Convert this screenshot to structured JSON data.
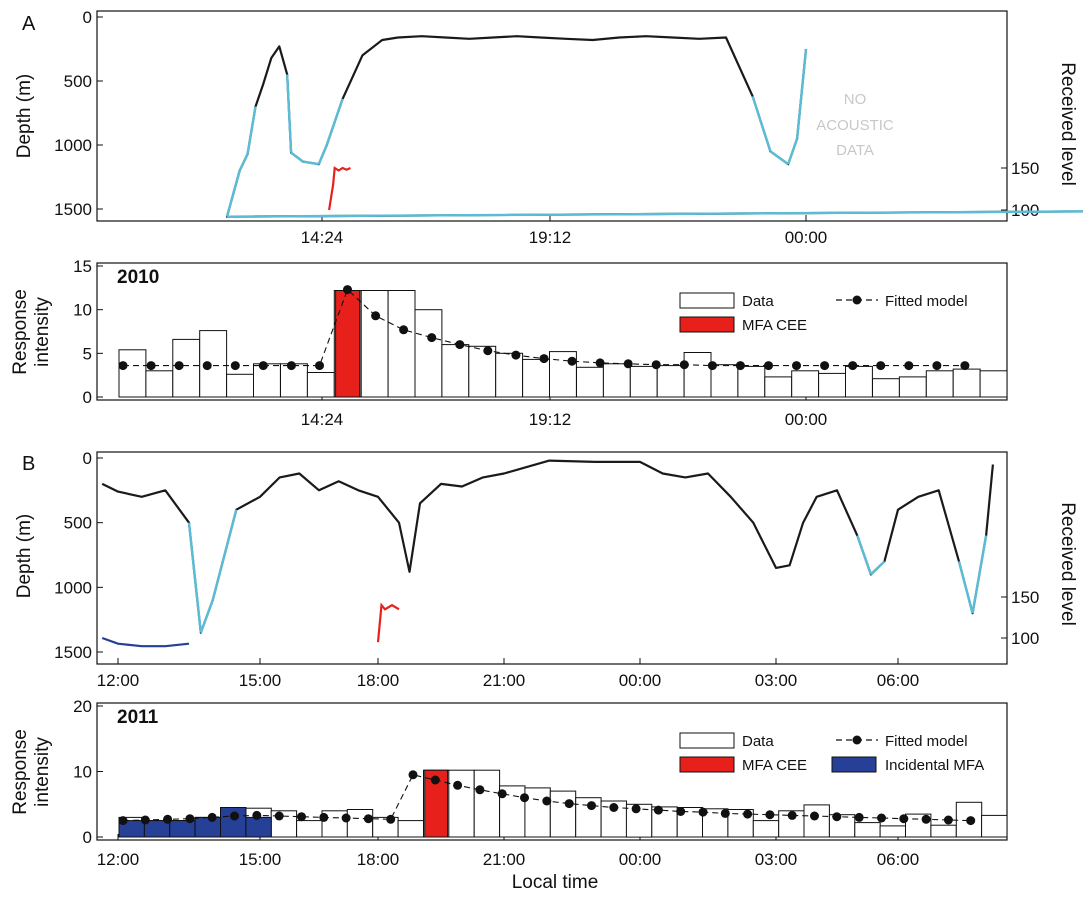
{
  "figure": {
    "panel_a": {
      "label": "A",
      "year": "2010",
      "no_acoustic_text": [
        "NO",
        "ACOUSTIC",
        "DATA"
      ]
    },
    "panel_b": {
      "label": "B",
      "year": "2011"
    },
    "depth_ylabel": "Depth (m)",
    "received_level_label": "Received level",
    "response_ylabel": [
      "Response",
      "intensity"
    ],
    "xlabel": "Local time",
    "legend": {
      "data": "Data",
      "mfa_cee": "MFA CEE",
      "fitted": "Fitted model",
      "incidental": "Incidental MFA"
    },
    "colors": {
      "dive": "#1a1a1a",
      "foraging": "#5bbcd6",
      "cee": "#e8201c",
      "incidental": "#263f97",
      "no_data": "#c8c8c8",
      "bar": "#ffffff"
    }
  },
  "chart_data": [
    {
      "type": "line",
      "panel": "A",
      "title": "",
      "xlabel": "",
      "ylabel": "Depth (m)",
      "y2label": "Received level",
      "x_ticks": [
        "14:24",
        "19:12",
        "00:00"
      ],
      "y_ticks": [
        0,
        500,
        1000,
        1500
      ],
      "y2_ticks": [
        100,
        150
      ],
      "ylim": [
        0,
        1500
      ],
      "series": [
        {
          "name": "Dive profile",
          "x": [
            "10:48",
            "11:00",
            "11:30",
            "12:00",
            "12:20",
            "12:24",
            "12:40",
            "12:50",
            "13:00",
            "13:10",
            "13:20",
            "13:30",
            "13:40",
            "13:45",
            "14:00",
            "14:20",
            "14:30",
            "14:50",
            "15:15",
            "15:40",
            "16:00",
            "16:30",
            "17:00",
            "17:30",
            "18:00",
            "18:30",
            "19:00",
            "19:30",
            "20:00",
            "20:30",
            "21:00",
            "21:30",
            "22:00",
            "22:30",
            "23:00",
            "23:20",
            "23:40",
            "23:50",
            "00:00"
          ],
          "depth": [
            480,
            380,
            160,
            480,
            1500,
            1560,
            1200,
            1070,
            700,
            520,
            320,
            230,
            450,
            1060,
            1130,
            1150,
            1000,
            640,
            300,
            180,
            160,
            150,
            160,
            170,
            160,
            150,
            160,
            170,
            180,
            160,
            150,
            160,
            170,
            160,
            620,
            1050,
            1150,
            950,
            250
          ]
        },
        {
          "name": "Received level (MFA CEE)",
          "x": [
            "14:33",
            "14:38",
            "14:40",
            "14:45",
            "14:50",
            "14:55",
            "15:00"
          ],
          "received_level": [
            100,
            130,
            150,
            147,
            150,
            148,
            150
          ]
        }
      ]
    },
    {
      "type": "bar",
      "panel": "A",
      "title": "2010",
      "xlabel": "",
      "ylabel": "Response intensity",
      "x_ticks": [
        "14:24",
        "19:12",
        "00:00"
      ],
      "ylim": [
        0,
        15
      ],
      "y_ticks": [
        0,
        5,
        10,
        15
      ],
      "series": [
        {
          "name": "Data",
          "values": [
            5.4,
            3.0,
            6.6,
            7.6,
            2.6,
            3.8,
            3.8,
            2.8,
            12.2,
            12.2,
            12.2,
            10.0,
            6.0,
            5.8,
            5.0,
            4.3,
            5.2,
            3.4,
            3.8,
            3.5,
            3.6,
            5.1,
            3.7,
            3.5,
            2.3,
            3.0,
            2.7,
            3.5,
            2.1,
            2.3,
            3.0,
            3.2,
            3.0
          ]
        },
        {
          "name": "MFA CEE",
          "values": [
            12.2
          ]
        },
        {
          "name": "Fitted model",
          "values": [
            3.6,
            3.6,
            3.6,
            3.6,
            3.6,
            3.6,
            3.6,
            3.6,
            12.3,
            9.3,
            7.7,
            6.8,
            6.0,
            5.3,
            4.8,
            4.4,
            4.1,
            3.9,
            3.8,
            3.7,
            3.7,
            3.6,
            3.6,
            3.6,
            3.6,
            3.6,
            3.6,
            3.6,
            3.6,
            3.6,
            3.6
          ]
        }
      ]
    },
    {
      "type": "line",
      "panel": "B",
      "title": "",
      "xlabel": "",
      "ylabel": "Depth (m)",
      "y2label": "Received level",
      "x_ticks": [
        "12:00",
        "15:00",
        "18:00",
        "21:00",
        "00:00",
        "03:00",
        "06:00"
      ],
      "y_ticks": [
        0,
        500,
        1000,
        1500
      ],
      "y2_ticks": [
        100,
        150
      ],
      "ylim": [
        0,
        1500
      ],
      "series": [
        {
          "name": "Dive profile",
          "x": [
            "11:40",
            "12:00",
            "12:30",
            "13:00",
            "13:30",
            "13:45",
            "14:00",
            "14:30",
            "15:00",
            "15:30",
            "16:00",
            "16:30",
            "17:00",
            "17:30",
            "18:00",
            "18:30",
            "18:45",
            "19:00",
            "19:30",
            "20:00",
            "20:30",
            "21:00",
            "22:00",
            "23:00",
            "00:00",
            "00:30",
            "01:00",
            "01:30",
            "02:00",
            "02:30",
            "03:00",
            "03:20",
            "03:40",
            "04:00",
            "04:30",
            "05:00",
            "05:20",
            "05:40",
            "06:00",
            "06:30",
            "07:00",
            "07:30",
            "07:50",
            "08:10",
            "08:20"
          ],
          "depth": [
            200,
            260,
            300,
            250,
            500,
            1350,
            1100,
            400,
            300,
            150,
            120,
            250,
            180,
            250,
            300,
            500,
            880,
            350,
            200,
            220,
            150,
            120,
            20,
            30,
            30,
            120,
            150,
            120,
            300,
            500,
            850,
            830,
            500,
            300,
            250,
            600,
            900,
            800,
            400,
            300,
            250,
            800,
            1200,
            600,
            50
          ]
        },
        {
          "name": "Received level (MFA CEE)",
          "x": [
            "18:00",
            "18:05",
            "18:10",
            "18:20",
            "18:30"
          ],
          "received_level": [
            95,
            140,
            135,
            140,
            135
          ]
        },
        {
          "name": "Received level (Incidental MFA)",
          "x": [
            "11:40",
            "12:00",
            "12:30",
            "13:00",
            "13:30"
          ],
          "received_level": [
            100,
            93,
            90,
            90,
            93
          ]
        }
      ]
    },
    {
      "type": "bar",
      "panel": "B",
      "title": "2011",
      "xlabel": "Local time",
      "ylabel": "Response intensity",
      "x_ticks": [
        "12:00",
        "15:00",
        "18:00",
        "21:00",
        "00:00",
        "03:00",
        "06:00"
      ],
      "ylim": [
        0,
        20
      ],
      "y_ticks": [
        0,
        10,
        20
      ],
      "series": [
        {
          "name": "Data",
          "values": [
            3.0,
            2.5,
            2.5,
            3.0,
            4.5,
            4.4,
            4.0,
            2.5,
            4.0,
            4.2,
            3.0,
            2.5,
            10.2,
            10.2,
            10.2,
            7.8,
            7.5,
            7.0,
            6.0,
            5.5,
            5.0,
            4.6,
            4.5,
            4.3,
            4.2,
            2.5,
            4.0,
            4.9,
            3.4,
            2.2,
            1.7,
            3.5,
            1.8,
            5.3,
            3.3
          ]
        },
        {
          "name": "MFA CEE",
          "values": [
            10.2
          ]
        },
        {
          "name": "Incidental MFA",
          "values": [
            2.5,
            2.5,
            2.5,
            3.0,
            4.5,
            3.0
          ]
        },
        {
          "name": "Fitted model",
          "values": [
            2.5,
            2.6,
            2.7,
            2.8,
            3.0,
            3.2,
            3.3,
            3.2,
            3.1,
            3.0,
            2.9,
            2.8,
            2.7,
            9.5,
            8.7,
            7.9,
            7.2,
            6.6,
            6.0,
            5.5,
            5.1,
            4.8,
            4.5,
            4.3,
            4.1,
            3.9,
            3.8,
            3.6,
            3.5,
            3.4,
            3.3,
            3.2,
            3.1,
            3.0,
            2.9,
            2.8,
            2.7,
            2.6,
            2.5
          ]
        }
      ]
    }
  ]
}
